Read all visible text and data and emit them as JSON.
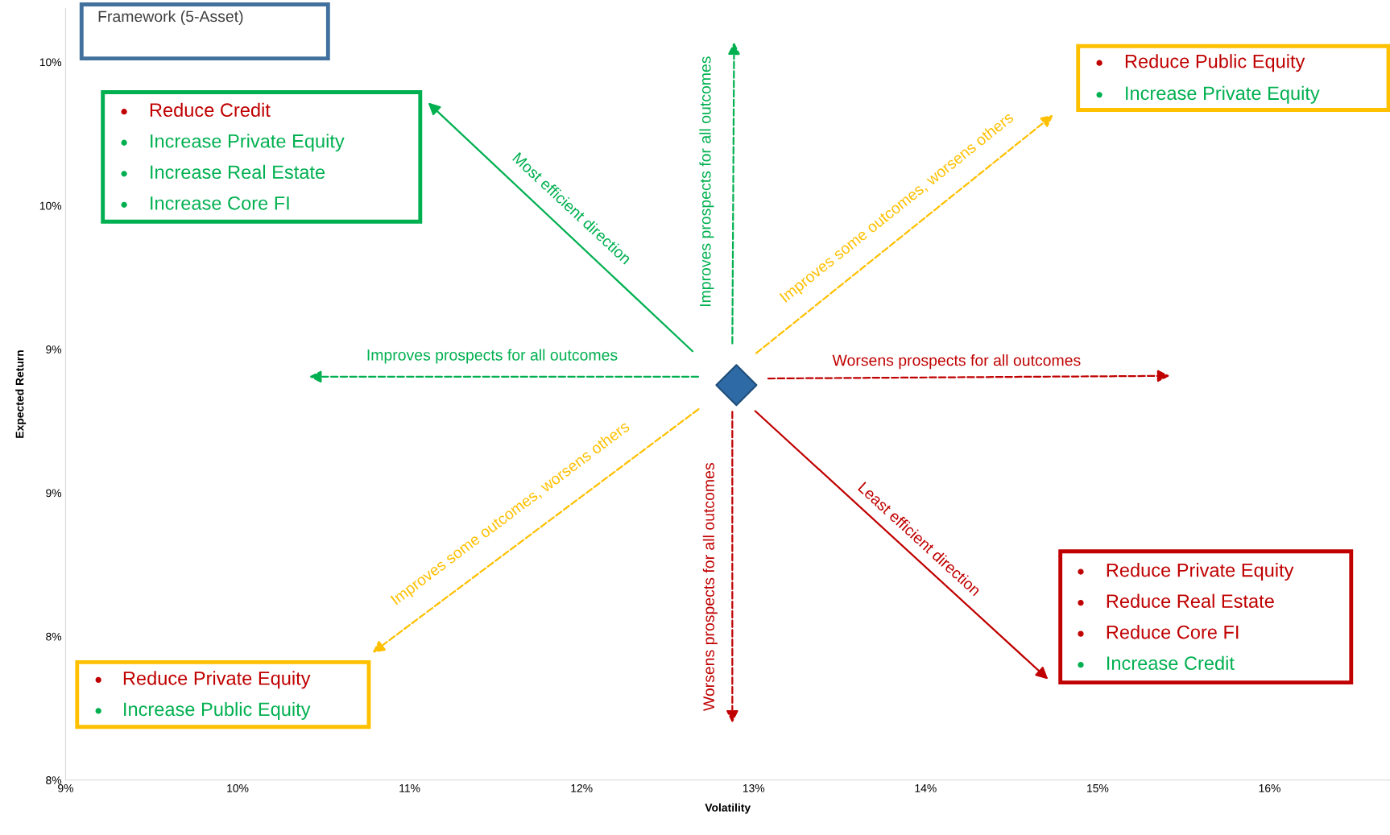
{
  "chart_data": {
    "type": "scatter",
    "xlabel": "Volatility",
    "ylabel": "Expected Return",
    "x": [
      12.9
    ],
    "values": [
      9.1
    ],
    "color": "#2e6aa6",
    "marker": "diamond",
    "xlim": [
      9,
      16.7
    ],
    "ylim": [
      8.0,
      10.15
    ],
    "xticks": [
      {
        "value": 9,
        "label": "9%"
      },
      {
        "value": 10,
        "label": "10%"
      },
      {
        "value": 11,
        "label": "11%"
      },
      {
        "value": 12,
        "label": "12%"
      },
      {
        "value": 13,
        "label": "13%"
      },
      {
        "value": 14,
        "label": "14%"
      },
      {
        "value": 15,
        "label": "15%"
      },
      {
        "value": 16,
        "label": "16%"
      }
    ],
    "yticks": [
      {
        "value": 8.0,
        "label": "8%"
      },
      {
        "value": 8.4,
        "label": "8%"
      },
      {
        "value": 8.8,
        "label": "9%"
      },
      {
        "value": 9.2,
        "label": "9%"
      },
      {
        "value": 9.6,
        "label": "10%"
      },
      {
        "value": 10.0,
        "label": "10%"
      }
    ],
    "annotations": [
      "Framework (5-Asset)",
      "Reduce Credit",
      "Increase Private Equity",
      "Increase Real Estate",
      "Increase Core FI",
      "Reduce Public Equity",
      "Increase Private Equity",
      "Reduce Private Equity",
      "Reduce Real Estate",
      "Reduce Core FI",
      "Increase Credit",
      "Reduce Private Equity",
      "Increase Public Equity",
      "Most efficient direction",
      "Improves prospects for all outcomes",
      "Improves some outcomes, worsens others",
      "Improves prospects for all outcomes",
      "Worsens prospects for all outcomes",
      "Least efficient direction",
      "Worsens prospects for all outcomes",
      "Improves some outcomes, worsens others"
    ]
  }
}
